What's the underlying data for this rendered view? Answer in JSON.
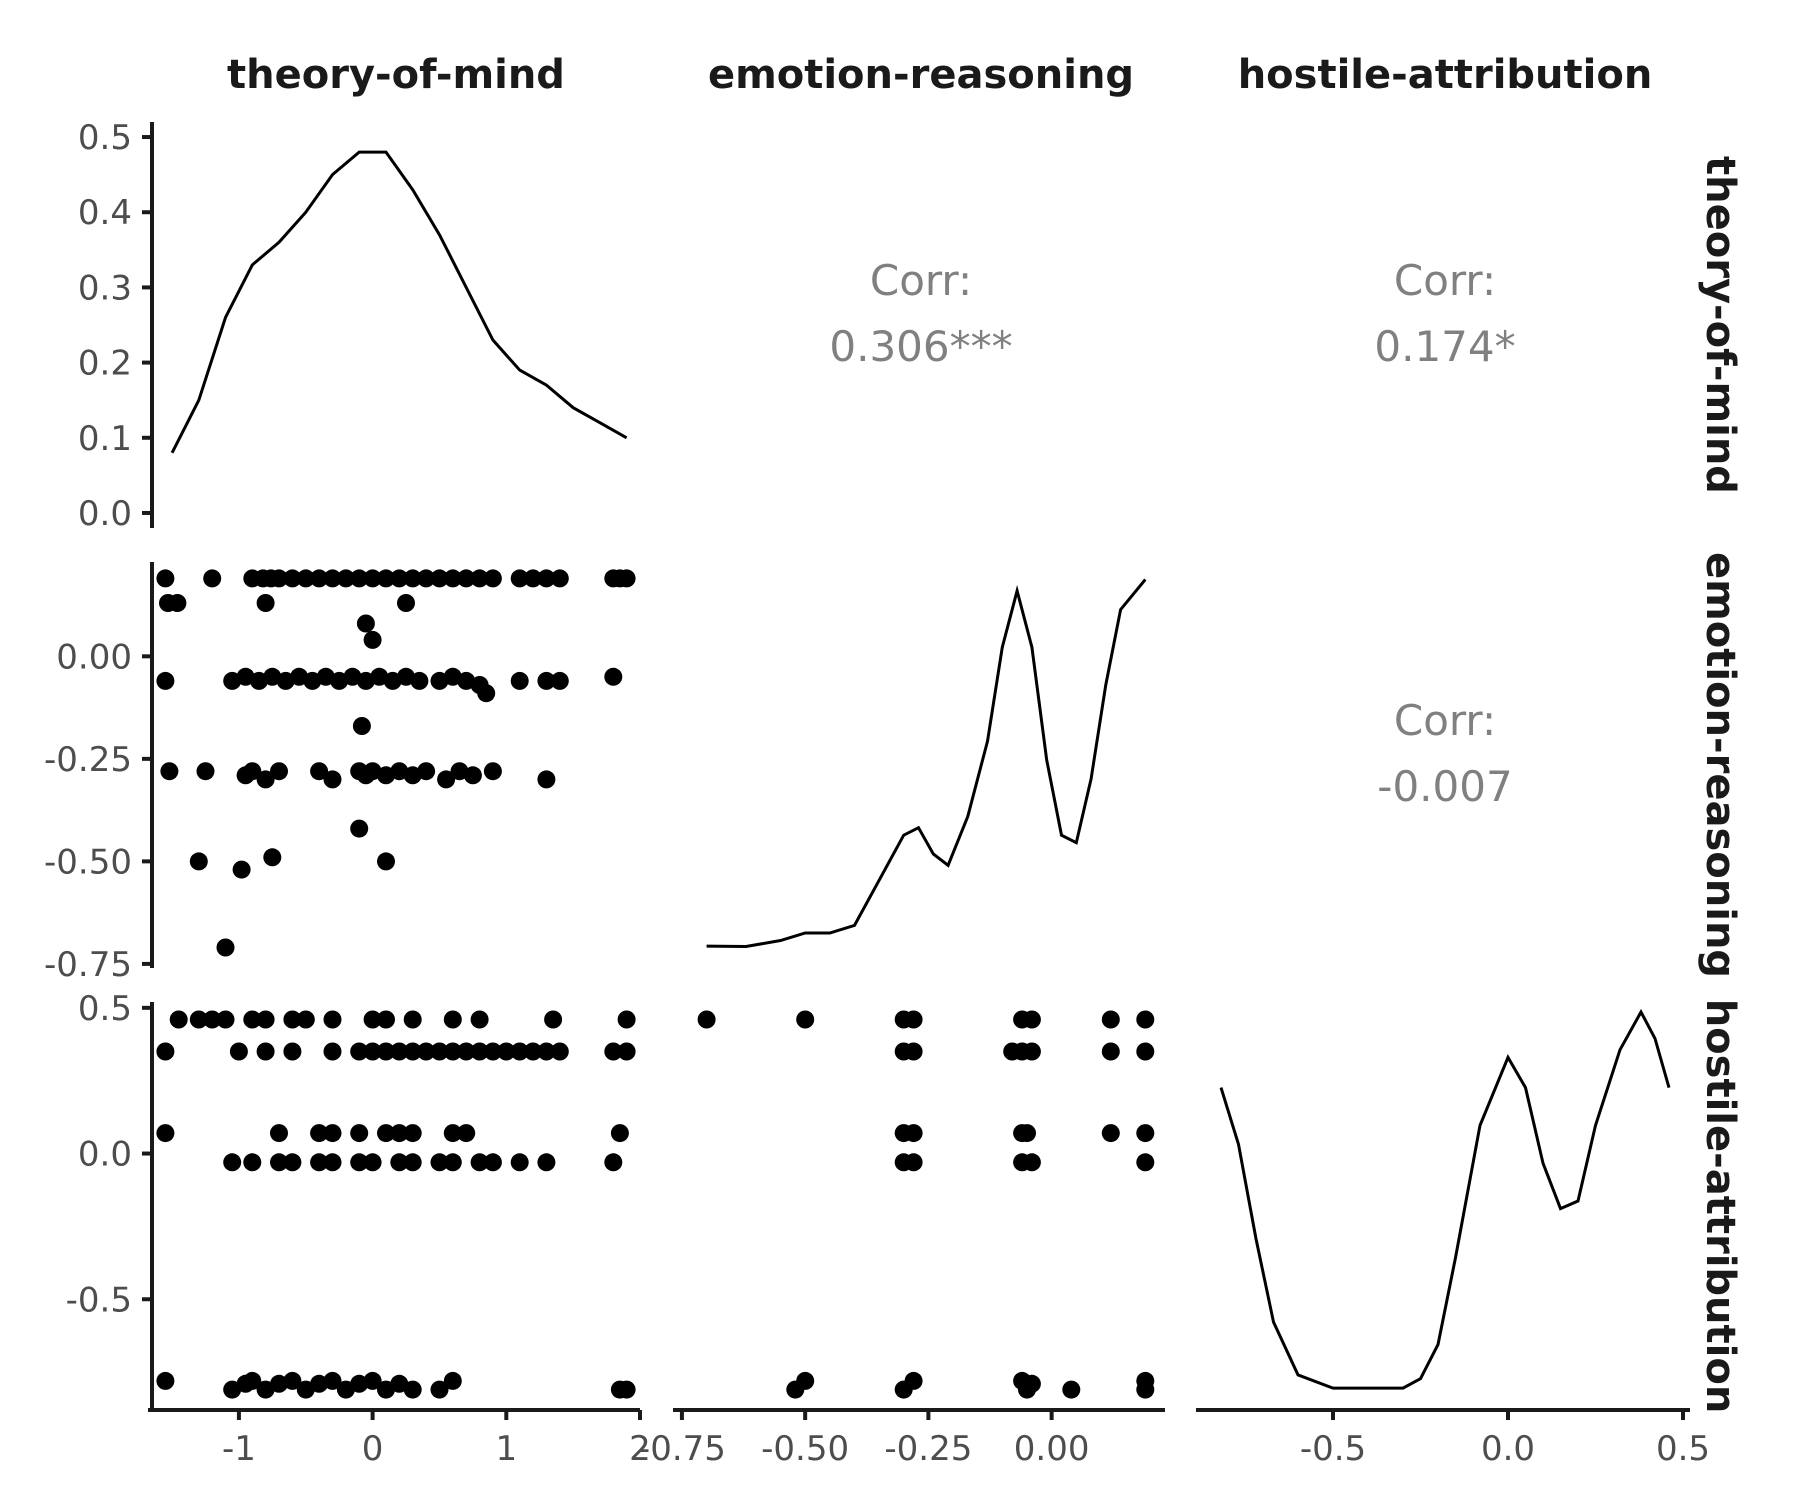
{
  "chart_data": {
    "type": "scatter",
    "variables": [
      "theory-of-mind",
      "emotion-reasoning",
      "hostile-attribution"
    ],
    "axes": {
      "theory-of-mind": {
        "range": [
          -1.65,
          2.0
        ],
        "ticks": [
          "-1",
          "0",
          "1",
          "2"
        ],
        "tick_values": [
          -1,
          0,
          1,
          2
        ]
      },
      "emotion-reasoning": {
        "range": [
          -0.76,
          0.23
        ],
        "ticks": [
          "-0.75",
          "-0.50",
          "-0.25",
          "0.00"
        ],
        "tick_values": [
          -0.75,
          -0.5,
          -0.25,
          0.0
        ]
      },
      "hostile-attribution": {
        "range": [
          -0.88,
          0.52
        ],
        "ticks": [
          "-0.5",
          "0.0",
          "0.5"
        ],
        "tick_values": [
          -0.5,
          0.0,
          0.5
        ]
      }
    },
    "density_axis": {
      "range": [
        -0.02,
        0.52
      ],
      "ticks": [
        "0.0",
        "0.1",
        "0.2",
        "0.3",
        "0.4",
        "0.5"
      ],
      "tick_values": [
        0,
        0.1,
        0.2,
        0.3,
        0.4,
        0.5
      ]
    },
    "correlations": [
      {
        "row": "theory-of-mind",
        "col": "emotion-reasoning",
        "label": "Corr:",
        "value": "0.306***"
      },
      {
        "row": "theory-of-mind",
        "col": "hostile-attribution",
        "label": "Corr:",
        "value": "0.174*"
      },
      {
        "row": "emotion-reasoning",
        "col": "hostile-attribution",
        "label": "Corr:",
        "value": "-0.007"
      }
    ],
    "densities": {
      "theory-of-mind": [
        [
          -1.5,
          0.08
        ],
        [
          -1.3,
          0.15
        ],
        [
          -1.1,
          0.26
        ],
        [
          -0.9,
          0.33
        ],
        [
          -0.7,
          0.36
        ],
        [
          -0.5,
          0.4
        ],
        [
          -0.3,
          0.45
        ],
        [
          -0.1,
          0.48
        ],
        [
          0.1,
          0.48
        ],
        [
          0.3,
          0.43
        ],
        [
          0.5,
          0.37
        ],
        [
          0.7,
          0.3
        ],
        [
          0.9,
          0.23
        ],
        [
          1.1,
          0.19
        ],
        [
          1.3,
          0.17
        ],
        [
          1.5,
          0.14
        ],
        [
          1.7,
          0.12
        ],
        [
          1.9,
          0.1
        ]
      ],
      "emotion-reasoning": [
        [
          -0.7,
          0.005
        ],
        [
          -0.62,
          0.004
        ],
        [
          -0.55,
          0.02
        ],
        [
          -0.5,
          0.04
        ],
        [
          -0.45,
          0.04
        ],
        [
          -0.4,
          0.06
        ],
        [
          -0.35,
          0.18
        ],
        [
          -0.3,
          0.3
        ],
        [
          -0.27,
          0.32
        ],
        [
          -0.24,
          0.25
        ],
        [
          -0.21,
          0.22
        ],
        [
          -0.17,
          0.35
        ],
        [
          -0.13,
          0.55
        ],
        [
          -0.1,
          0.8
        ],
        [
          -0.07,
          0.95
        ],
        [
          -0.04,
          0.8
        ],
        [
          -0.01,
          0.5
        ],
        [
          0.02,
          0.3
        ],
        [
          0.05,
          0.28
        ],
        [
          0.08,
          0.45
        ],
        [
          0.11,
          0.7
        ],
        [
          0.14,
          0.9
        ],
        [
          0.19,
          0.98
        ]
      ],
      "hostile-attribution": [
        [
          -0.82,
          0.8
        ],
        [
          -0.77,
          0.65
        ],
        [
          -0.72,
          0.4
        ],
        [
          -0.67,
          0.18
        ],
        [
          -0.6,
          0.04
        ],
        [
          -0.5,
          0.005
        ],
        [
          -0.4,
          0.005
        ],
        [
          -0.3,
          0.005
        ],
        [
          -0.25,
          0.03
        ],
        [
          -0.2,
          0.12
        ],
        [
          -0.15,
          0.35
        ],
        [
          -0.08,
          0.7
        ],
        [
          0.0,
          0.88
        ],
        [
          0.05,
          0.8
        ],
        [
          0.1,
          0.6
        ],
        [
          0.15,
          0.48
        ],
        [
          0.2,
          0.5
        ],
        [
          0.25,
          0.7
        ],
        [
          0.32,
          0.9
        ],
        [
          0.38,
          1.0
        ],
        [
          0.42,
          0.93
        ],
        [
          0.46,
          0.8
        ]
      ]
    },
    "scatter": {
      "emotion-reasoning_vs_theory-of-mind": [
        [
          -1.55,
          0.19
        ],
        [
          -1.53,
          0.13
        ],
        [
          -1.46,
          0.13
        ],
        [
          -1.55,
          -0.06
        ],
        [
          -1.52,
          -0.28
        ],
        [
          -1.2,
          0.19
        ],
        [
          -1.25,
          -0.28
        ],
        [
          -1.3,
          -0.5
        ],
        [
          -1.1,
          -0.71
        ],
        [
          -0.98,
          -0.52
        ],
        [
          -0.75,
          -0.49
        ],
        [
          -0.9,
          0.19
        ],
        [
          -0.82,
          0.19
        ],
        [
          -0.76,
          0.19
        ],
        [
          -0.7,
          0.19
        ],
        [
          -0.6,
          0.19
        ],
        [
          -0.5,
          0.19
        ],
        [
          -0.4,
          0.19
        ],
        [
          -0.3,
          0.19
        ],
        [
          -0.2,
          0.19
        ],
        [
          -0.1,
          0.19
        ],
        [
          0.0,
          0.19
        ],
        [
          0.1,
          0.19
        ],
        [
          0.2,
          0.19
        ],
        [
          0.3,
          0.19
        ],
        [
          0.4,
          0.19
        ],
        [
          0.5,
          0.19
        ],
        [
          0.6,
          0.19
        ],
        [
          0.7,
          0.19
        ],
        [
          0.8,
          0.19
        ],
        [
          0.9,
          0.19
        ],
        [
          1.1,
          0.19
        ],
        [
          1.2,
          0.19
        ],
        [
          1.3,
          0.19
        ],
        [
          1.4,
          0.19
        ],
        [
          1.8,
          0.19
        ],
        [
          1.85,
          0.19
        ],
        [
          1.9,
          0.19
        ],
        [
          -0.8,
          0.13
        ],
        [
          0.25,
          0.13
        ],
        [
          -0.05,
          0.08
        ],
        [
          0.0,
          0.04
        ],
        [
          -1.05,
          -0.06
        ],
        [
          -0.95,
          -0.05
        ],
        [
          -0.85,
          -0.06
        ],
        [
          -0.75,
          -0.05
        ],
        [
          -0.65,
          -0.06
        ],
        [
          -0.55,
          -0.05
        ],
        [
          -0.45,
          -0.06
        ],
        [
          -0.35,
          -0.05
        ],
        [
          -0.25,
          -0.06
        ],
        [
          -0.15,
          -0.05
        ],
        [
          -0.05,
          -0.06
        ],
        [
          0.05,
          -0.05
        ],
        [
          0.15,
          -0.06
        ],
        [
          0.25,
          -0.05
        ],
        [
          0.35,
          -0.06
        ],
        [
          0.5,
          -0.06
        ],
        [
          0.6,
          -0.05
        ],
        [
          0.7,
          -0.06
        ],
        [
          0.8,
          -0.07
        ],
        [
          0.85,
          -0.09
        ],
        [
          1.1,
          -0.06
        ],
        [
          1.3,
          -0.06
        ],
        [
          1.4,
          -0.06
        ],
        [
          1.8,
          -0.05
        ],
        [
          -0.08,
          -0.17
        ],
        [
          -0.95,
          -0.29
        ],
        [
          -0.9,
          -0.28
        ],
        [
          -0.8,
          -0.3
        ],
        [
          -0.7,
          -0.28
        ],
        [
          -0.4,
          -0.28
        ],
        [
          -0.3,
          -0.3
        ],
        [
          -0.1,
          -0.28
        ],
        [
          -0.05,
          -0.29
        ],
        [
          0.0,
          -0.28
        ],
        [
          0.1,
          -0.29
        ],
        [
          0.2,
          -0.28
        ],
        [
          0.3,
          -0.29
        ],
        [
          0.4,
          -0.28
        ],
        [
          0.55,
          -0.3
        ],
        [
          0.65,
          -0.28
        ],
        [
          0.75,
          -0.29
        ],
        [
          0.9,
          -0.28
        ],
        [
          1.3,
          -0.3
        ],
        [
          -0.1,
          -0.42
        ],
        [
          0.1,
          -0.5
        ]
      ],
      "hostile-attribution_vs_theory-of-mind": [
        [
          -1.45,
          0.46
        ],
        [
          -1.3,
          0.46
        ],
        [
          -1.2,
          0.46
        ],
        [
          -1.1,
          0.46
        ],
        [
          -0.9,
          0.46
        ],
        [
          -0.8,
          0.46
        ],
        [
          -0.6,
          0.46
        ],
        [
          -0.5,
          0.46
        ],
        [
          -0.3,
          0.46
        ],
        [
          0.0,
          0.46
        ],
        [
          0.1,
          0.46
        ],
        [
          0.3,
          0.46
        ],
        [
          0.6,
          0.46
        ],
        [
          0.8,
          0.46
        ],
        [
          1.35,
          0.46
        ],
        [
          1.9,
          0.46
        ],
        [
          -1.55,
          0.35
        ],
        [
          -1.0,
          0.35
        ],
        [
          -0.8,
          0.35
        ],
        [
          -0.6,
          0.35
        ],
        [
          -0.3,
          0.35
        ],
        [
          -0.1,
          0.35
        ],
        [
          0.0,
          0.35
        ],
        [
          0.1,
          0.35
        ],
        [
          0.2,
          0.35
        ],
        [
          0.3,
          0.35
        ],
        [
          0.4,
          0.35
        ],
        [
          0.5,
          0.35
        ],
        [
          0.6,
          0.35
        ],
        [
          0.7,
          0.35
        ],
        [
          0.8,
          0.35
        ],
        [
          0.9,
          0.35
        ],
        [
          1.0,
          0.35
        ],
        [
          1.1,
          0.35
        ],
        [
          1.2,
          0.35
        ],
        [
          1.3,
          0.35
        ],
        [
          1.4,
          0.35
        ],
        [
          1.8,
          0.35
        ],
        [
          1.9,
          0.35
        ],
        [
          -1.55,
          0.07
        ],
        [
          -0.7,
          0.07
        ],
        [
          -0.4,
          0.07
        ],
        [
          -0.3,
          0.07
        ],
        [
          -0.1,
          0.07
        ],
        [
          0.1,
          0.07
        ],
        [
          0.2,
          0.07
        ],
        [
          0.3,
          0.07
        ],
        [
          0.6,
          0.07
        ],
        [
          0.7,
          0.07
        ],
        [
          1.85,
          0.07
        ],
        [
          -1.05,
          -0.03
        ],
        [
          -0.9,
          -0.03
        ],
        [
          -0.7,
          -0.03
        ],
        [
          -0.6,
          -0.03
        ],
        [
          -0.4,
          -0.03
        ],
        [
          -0.3,
          -0.03
        ],
        [
          -0.1,
          -0.03
        ],
        [
          0.0,
          -0.03
        ],
        [
          0.2,
          -0.03
        ],
        [
          0.3,
          -0.03
        ],
        [
          0.5,
          -0.03
        ],
        [
          0.6,
          -0.03
        ],
        [
          0.8,
          -0.03
        ],
        [
          0.9,
          -0.03
        ],
        [
          1.1,
          -0.03
        ],
        [
          1.3,
          -0.03
        ],
        [
          1.8,
          -0.03
        ],
        [
          -1.55,
          -0.78
        ],
        [
          -1.05,
          -0.81
        ],
        [
          -0.95,
          -0.79
        ],
        [
          -0.9,
          -0.78
        ],
        [
          -0.8,
          -0.81
        ],
        [
          -0.7,
          -0.79
        ],
        [
          -0.6,
          -0.78
        ],
        [
          -0.5,
          -0.81
        ],
        [
          -0.4,
          -0.79
        ],
        [
          -0.3,
          -0.78
        ],
        [
          -0.2,
          -0.81
        ],
        [
          -0.1,
          -0.79
        ],
        [
          0.0,
          -0.78
        ],
        [
          0.1,
          -0.81
        ],
        [
          0.2,
          -0.79
        ],
        [
          0.3,
          -0.81
        ],
        [
          0.5,
          -0.81
        ],
        [
          0.6,
          -0.78
        ],
        [
          1.85,
          -0.81
        ],
        [
          1.9,
          -0.81
        ]
      ],
      "hostile-attribution_vs_emotion-reasoning": [
        [
          -0.7,
          0.46
        ],
        [
          -0.5,
          0.46
        ],
        [
          -0.3,
          0.46
        ],
        [
          -0.28,
          0.46
        ],
        [
          -0.06,
          0.46
        ],
        [
          -0.04,
          0.46
        ],
        [
          0.12,
          0.46
        ],
        [
          0.19,
          0.46
        ],
        [
          -0.3,
          0.35
        ],
        [
          -0.28,
          0.35
        ],
        [
          -0.08,
          0.35
        ],
        [
          -0.06,
          0.35
        ],
        [
          -0.04,
          0.35
        ],
        [
          0.12,
          0.35
        ],
        [
          0.19,
          0.35
        ],
        [
          -0.3,
          0.07
        ],
        [
          -0.28,
          0.07
        ],
        [
          -0.06,
          0.07
        ],
        [
          -0.05,
          0.07
        ],
        [
          0.12,
          0.07
        ],
        [
          0.19,
          0.07
        ],
        [
          -0.3,
          -0.03
        ],
        [
          -0.28,
          -0.03
        ],
        [
          -0.06,
          -0.03
        ],
        [
          -0.04,
          -0.03
        ],
        [
          0.19,
          -0.03
        ],
        [
          -0.52,
          -0.81
        ],
        [
          -0.5,
          -0.78
        ],
        [
          -0.3,
          -0.81
        ],
        [
          -0.28,
          -0.78
        ],
        [
          -0.06,
          -0.78
        ],
        [
          -0.05,
          -0.81
        ],
        [
          -0.04,
          -0.79
        ],
        [
          0.04,
          -0.81
        ],
        [
          0.19,
          -0.78
        ],
        [
          0.19,
          -0.81
        ]
      ]
    }
  }
}
